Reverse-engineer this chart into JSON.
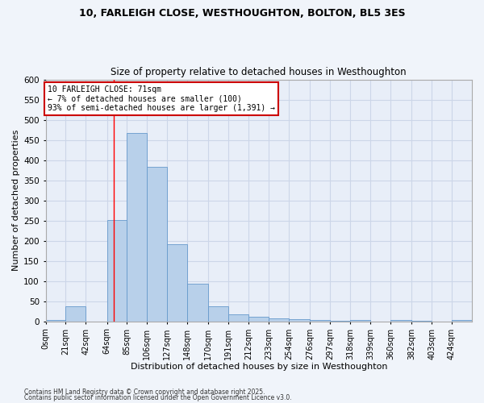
{
  "title1": "10, FARLEIGH CLOSE, WESTHOUGHTON, BOLTON, BL5 3ES",
  "title2": "Size of property relative to detached houses in Westhoughton",
  "xlabel": "Distribution of detached houses by size in Westhoughton",
  "ylabel": "Number of detached properties",
  "bin_edges": [
    0,
    21,
    42,
    64,
    85,
    106,
    127,
    148,
    170,
    191,
    212,
    233,
    254,
    276,
    297,
    318,
    339,
    360,
    382,
    403,
    424,
    445
  ],
  "bin_labels": [
    "0sqm",
    "21sqm",
    "42sqm",
    "64sqm",
    "85sqm",
    "106sqm",
    "127sqm",
    "148sqm",
    "170sqm",
    "191sqm",
    "212sqm",
    "233sqm",
    "254sqm",
    "276sqm",
    "297sqm",
    "318sqm",
    "339sqm",
    "360sqm",
    "382sqm",
    "403sqm",
    "424sqm"
  ],
  "bar_values": [
    3,
    38,
    0,
    252,
    468,
    383,
    191,
    93,
    38,
    18,
    12,
    7,
    6,
    4,
    2,
    3,
    0,
    3,
    1,
    0,
    3
  ],
  "bar_color": "#b8d0ea",
  "bar_edge_color": "#6699cc",
  "grid_color": "#ccd6e8",
  "bg_color": "#e8eef8",
  "fig_bg_color": "#f0f4fa",
  "red_line_x": 71,
  "annotation_line1": "10 FARLEIGH CLOSE: 71sqm",
  "annotation_line2": "← 7% of detached houses are smaller (100)",
  "annotation_line3": "93% of semi-detached houses are larger (1,391) →",
  "annotation_box_color": "#ffffff",
  "annotation_border_color": "#cc0000",
  "footer1": "Contains HM Land Registry data © Crown copyright and database right 2025.",
  "footer2": "Contains public sector information licensed under the Open Government Licence v3.0.",
  "ylim": [
    0,
    600
  ],
  "yticks": [
    0,
    50,
    100,
    150,
    200,
    250,
    300,
    350,
    400,
    450,
    500,
    550,
    600
  ]
}
